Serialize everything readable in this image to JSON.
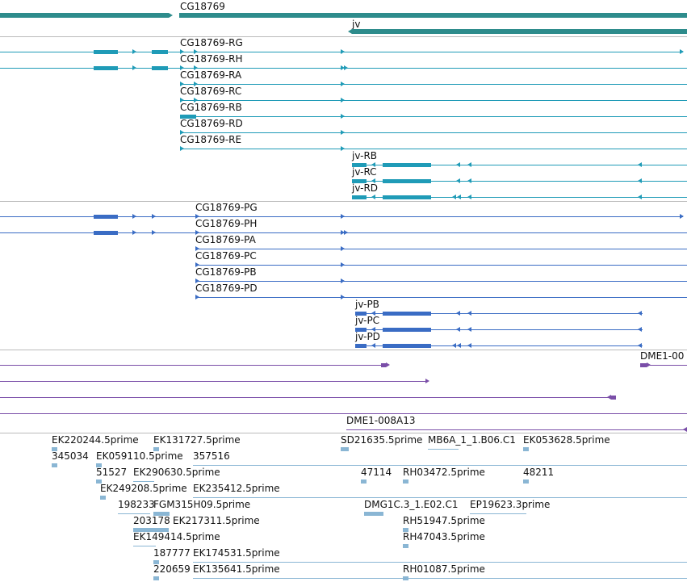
{
  "colors": {
    "gene": "#2e8c8c",
    "transcript": "#1f9bb7",
    "protein": "#3a6cc4",
    "clone": "#7a4ea8",
    "est": "#8ab6d4",
    "separator": "#bbbbbb"
  },
  "tracks": {
    "genes": {
      "items": [
        {
          "label": "CG18769"
        },
        {
          "label": "jv"
        }
      ]
    },
    "transcripts": {
      "items": [
        {
          "label": "CG18769-RG"
        },
        {
          "label": "CG18769-RH"
        },
        {
          "label": "CG18769-RA"
        },
        {
          "label": "CG18769-RC"
        },
        {
          "label": "CG18769-RB"
        },
        {
          "label": "CG18769-RD"
        },
        {
          "label": "CG18769-RE"
        },
        {
          "label": "jv-RB"
        },
        {
          "label": "jv-RC"
        },
        {
          "label": "jv-RD"
        }
      ]
    },
    "proteins": {
      "items": [
        {
          "label": "CG18769-PG"
        },
        {
          "label": "CG18769-PH"
        },
        {
          "label": "CG18769-PA"
        },
        {
          "label": "CG18769-PC"
        },
        {
          "label": "CG18769-PB"
        },
        {
          "label": "CG18769-PD"
        },
        {
          "label": "jv-PB"
        },
        {
          "label": "jv-PC"
        },
        {
          "label": "jv-PD"
        }
      ]
    },
    "clones": {
      "items": [
        {
          "label": "DME1-00"
        },
        {
          "label": "DME1-008A13"
        }
      ]
    },
    "ests": {
      "items": [
        {
          "label": "EK220244.5prime"
        },
        {
          "label": "EK131727.5prime"
        },
        {
          "label": "SD21635.5prime"
        },
        {
          "label": "MB6A_1_1.B06.C1"
        },
        {
          "label": "EK053628.5prime"
        },
        {
          "label": "345034"
        },
        {
          "label": "EK059110.5prime"
        },
        {
          "label": "357516"
        },
        {
          "label": "51527"
        },
        {
          "label": "EK290630.5prime"
        },
        {
          "label": "47114"
        },
        {
          "label": "RH03472.5prime"
        },
        {
          "label": "48211"
        },
        {
          "label": "EK249208.5prime"
        },
        {
          "label": "EK235412.5prime"
        },
        {
          "label": "198233"
        },
        {
          "label": "FGM315H09.5prime"
        },
        {
          "label": "DMG1C.3_1.E02.C1"
        },
        {
          "label": "EP19623.3prime"
        },
        {
          "label": "203178"
        },
        {
          "label": "EK217311.5prime"
        },
        {
          "label": "RH51947.5prime"
        },
        {
          "label": "EK149414.5prime"
        },
        {
          "label": "RH47043.5prime"
        },
        {
          "label": "187777"
        },
        {
          "label": "EK174531.5prime"
        },
        {
          "label": "220659"
        },
        {
          "label": "EK135641.5prime"
        },
        {
          "label": "RH01087.5prime"
        }
      ]
    }
  }
}
